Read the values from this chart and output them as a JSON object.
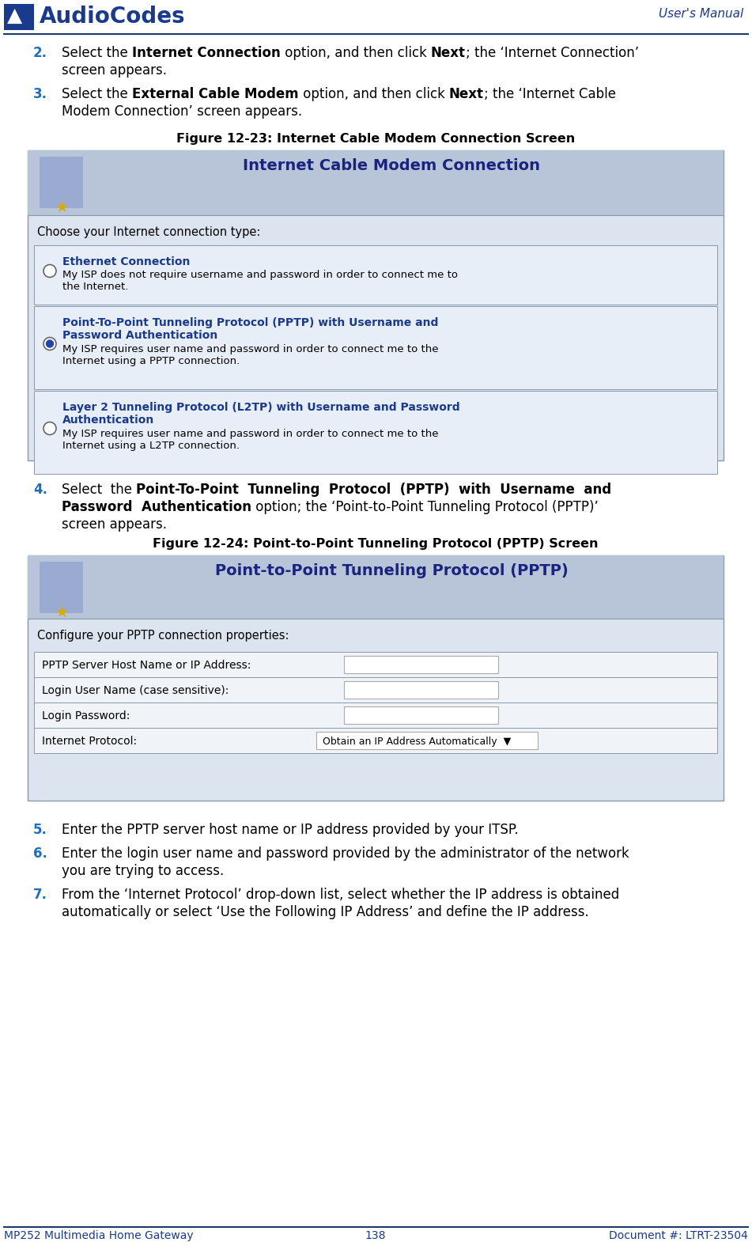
{
  "header_line_color": "#1a3a6b",
  "header_text_color": "#1a3a8b",
  "footer_text_color": "#1a3a8b",
  "footer_line_color": "#1a3a6b",
  "body_text_color": "#000000",
  "number_color": "#1a6fbf",
  "bold_blue_color": "#1a3a8b",
  "bg_color": "#ffffff",
  "title_text": "User's Manual",
  "logo_text": "AudioCodes",
  "footer_left": "MP252 Multimedia Home Gateway",
  "footer_center": "138",
  "footer_right": "Document #: LTRT-23504",
  "step2_num": "2.",
  "step3_num": "3.",
  "step4_num": "4.",
  "step5_num": "5.",
  "step6_num": "6.",
  "step7_num": "7.",
  "step2_line1": "Select the **Internet Connection** option, and then click **Next**; the ‘Internet Connection’",
  "step2_line2": "screen appears.",
  "step3_line1": "Select the **External Cable Modem** option, and then click **Next**; the ‘Internet Cable",
  "step3_line2": "Modem Connection’ screen appears.",
  "fig1_caption": "Figure 12-23: Internet Cable Modem Connection Screen",
  "fig1_title": "Internet Cable Modem Connection",
  "fig1_subtitle": "Choose your Internet connection type:",
  "fig1_opt1_bold": "Ethernet Connection",
  "fig1_opt1_text": "My ISP does not require username and password in order to connect me to\nthe Internet.",
  "fig1_opt2_bold_l1": "Point-To-Point Tunneling Protocol (PPTP) with Username and",
  "fig1_opt2_bold_l2": "Password Authentication",
  "fig1_opt2_text": "My ISP requires user name and password in order to connect me to the\nInternet using a PPTP connection.",
  "fig1_opt3_bold_l1": "Layer 2 Tunneling Protocol (L2TP) with Username and Password",
  "fig1_opt3_bold_l2": "Authentication",
  "fig1_opt3_text": "My ISP requires user name and password in order to connect me to the\nInternet using a L2TP connection.",
  "step4_line1_pre": "Select the ",
  "step4_line1_bold": "Point-To-Point Tunneling Protocol (PPTP) with Username and",
  "step4_line2_bold": "Password Authentication",
  "step4_line2_post": " option; the ‘Point-to-Point Tunneling Protocol (PPTP)’",
  "step4_line3": "screen appears.",
  "fig2_caption": "Figure 12-24: Point-to-Point Tunneling Protocol (PPTP) Screen",
  "fig2_title": "Point-to-Point Tunneling Protocol (PPTP)",
  "fig2_subtitle": "Configure your PPTP connection properties:",
  "fig2_row1_label": "PPTP Server Host Name or IP Address:",
  "fig2_row2_label": "Login User Name (case sensitive):",
  "fig2_row3_label": "Login Password:",
  "fig2_row4_label": "Internet Protocol:",
  "fig2_row4_value": "Obtain an IP Address Automatically  ▼",
  "step5_text": "Enter the PPTP server host name or IP address provided by your ITSP.",
  "step6_line1": "Enter the login user name and password provided by the administrator of the network",
  "step6_line2": "you are trying to access.",
  "step7_line1": "From the ‘Internet Protocol’ drop-down list, select whether the IP address is obtained",
  "step7_line2": "automatically or select ‘Use the Following IP Address’ and define the IP address.",
  "fig1_header_color": "#b8c4d8",
  "fig1_body_color": "#dce4f0",
  "fig1_opt_color": "#e8eef8",
  "fig2_header_color": "#b8c4d8",
  "fig2_body_color": "#dce4f0",
  "fig2_row_color": "#e8eef8",
  "fig_title_color": "#1a237e",
  "fig_border_color": "#8899aa"
}
